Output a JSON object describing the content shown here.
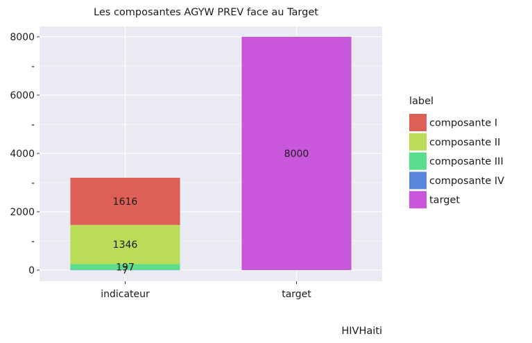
{
  "chart_data": {
    "type": "bar",
    "stacked": true,
    "title": "Les composantes AGYW PREV face au Target",
    "caption": "HIVHaiti",
    "xlabel": "",
    "ylabel": "",
    "categories": [
      "indicateur",
      "target"
    ],
    "ylim": [
      0,
      8300
    ],
    "yticks": [
      0,
      2000,
      4000,
      6000,
      8000
    ],
    "yticks_minor": [
      1000,
      3000,
      5000,
      7000
    ],
    "minor_tick_label": "-",
    "grid": true,
    "legend": {
      "title": "label",
      "position": "right"
    },
    "series": [
      {
        "name": "composante I",
        "color": "#de5f56",
        "values": [
          1616,
          0
        ],
        "labels": [
          "1616",
          ""
        ]
      },
      {
        "name": "composante II",
        "color": "#bbdc59",
        "values": [
          1346,
          0
        ],
        "labels": [
          "1346",
          ""
        ]
      },
      {
        "name": "composante III",
        "color": "#59dc8c",
        "values": [
          197,
          0
        ],
        "labels": [
          "197",
          ""
        ]
      },
      {
        "name": "composante IV",
        "color": "#5a87de",
        "values": [
          7,
          0
        ],
        "labels": [
          "7",
          ""
        ]
      },
      {
        "name": "target",
        "color": "#c957dc",
        "values": [
          0,
          8000
        ],
        "labels": [
          "",
          "8000"
        ]
      }
    ],
    "stack_order_bottom_to_top": [
      "composante IV",
      "composante III",
      "composante II",
      "composante I",
      "target"
    ]
  }
}
